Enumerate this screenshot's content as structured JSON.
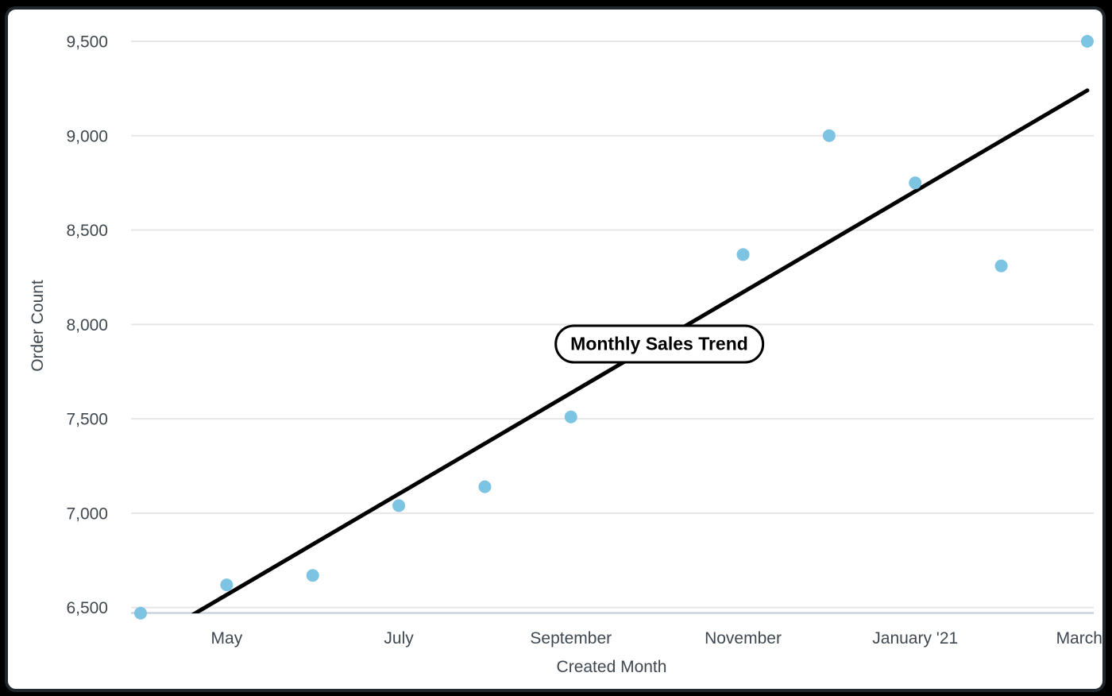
{
  "window": {
    "background": "#000000",
    "card_background": "#ffffff",
    "card_border": "#20272d"
  },
  "chart_data": {
    "type": "scatter",
    "title_label": "Monthly Sales Trend",
    "xlabel": "Created Month",
    "ylabel": "Order Count",
    "point_color": "#7CC4E2",
    "trend_color": "#000000",
    "grid_color": "#E6E6E6",
    "axis_line_color": "#C9D3DF",
    "text_color": "#3F4850",
    "grid": "horizontal-only",
    "legend": "none",
    "ylim": [
      6500,
      9500
    ],
    "y_ticks": [
      {
        "label": "6,500",
        "value": 6500
      },
      {
        "label": "7,000",
        "value": 7000
      },
      {
        "label": "7,500",
        "value": 7500
      },
      {
        "label": "8,000",
        "value": 8000
      },
      {
        "label": "8,500",
        "value": 8500
      },
      {
        "label": "9,000",
        "value": 9000
      },
      {
        "label": "9,500",
        "value": 9500
      }
    ],
    "x_ticks": [
      {
        "label": "May",
        "month_index": 1
      },
      {
        "label": "July",
        "month_index": 3
      },
      {
        "label": "September",
        "month_index": 5
      },
      {
        "label": "November",
        "month_index": 7
      },
      {
        "label": "January '21",
        "month_index": 9
      },
      {
        "label": "March",
        "month_index": 11
      }
    ],
    "points": [
      {
        "month": "April",
        "month_index": 0,
        "value": 6470
      },
      {
        "month": "May",
        "month_index": 1,
        "value": 6620
      },
      {
        "month": "June",
        "month_index": 2,
        "value": 6670
      },
      {
        "month": "July",
        "month_index": 3,
        "value": 7040
      },
      {
        "month": "August",
        "month_index": 4,
        "value": 7140
      },
      {
        "month": "September",
        "month_index": 5,
        "value": 7510
      },
      {
        "month": "November",
        "month_index": 7,
        "value": 8370
      },
      {
        "month": "December",
        "month_index": 8,
        "value": 9000
      },
      {
        "month": "January '21",
        "month_index": 9,
        "value": 8750
      },
      {
        "month": "February",
        "month_index": 10,
        "value": 8310
      },
      {
        "month": "March",
        "month_index": 11,
        "value": 9500
      }
    ],
    "trend_line": {
      "start_month_index": 0,
      "start_value": 6300,
      "end_month_index": 11,
      "end_value": 9240
    }
  }
}
